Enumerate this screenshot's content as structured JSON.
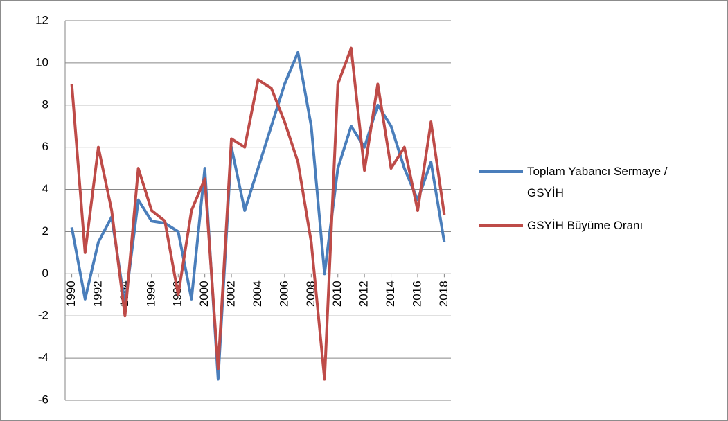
{
  "chart_data": {
    "type": "line",
    "x": [
      1990,
      1991,
      1992,
      1993,
      1994,
      1995,
      1996,
      1997,
      1998,
      1999,
      2000,
      2001,
      2002,
      2003,
      2004,
      2005,
      2006,
      2007,
      2008,
      2009,
      2010,
      2011,
      2012,
      2013,
      2014,
      2015,
      2016,
      2017,
      2018
    ],
    "series": [
      {
        "name": "Toplam Yabancı Sermaye / GSYİH",
        "color": "#4a7ebb",
        "values": [
          2.2,
          -1.2,
          1.5,
          2.7,
          -1.5,
          3.5,
          2.5,
          2.4,
          2.0,
          -1.2,
          5.0,
          -5.0,
          6.0,
          3.0,
          5.0,
          7.0,
          9.0,
          10.5,
          7.0,
          0.0,
          5.0,
          7.0,
          6.0,
          8.0,
          7.0,
          5.0,
          3.5,
          5.3,
          1.5
        ]
      },
      {
        "name": "GSYİH Büyüme Oranı",
        "color": "#be4b48",
        "values": [
          9.0,
          1.0,
          6.0,
          3.0,
          -2.0,
          5.0,
          3.0,
          2.5,
          -1.0,
          3.0,
          4.5,
          -4.5,
          6.4,
          6.0,
          9.2,
          8.8,
          7.2,
          5.3,
          1.5,
          -5.0,
          9.0,
          10.7,
          4.9,
          9.0,
          5.0,
          6.0,
          3.0,
          7.2,
          2.8
        ]
      }
    ],
    "xlim": [
      1989.5,
      2018.5
    ],
    "xticks": [
      1990,
      1992,
      1994,
      1996,
      1998,
      2000,
      2002,
      2004,
      2006,
      2008,
      2010,
      2012,
      2014,
      2016,
      2018
    ],
    "ylim": [
      -6,
      12
    ],
    "yticks": [
      -6,
      -4,
      -2,
      0,
      2,
      4,
      6,
      8,
      10,
      12
    ],
    "grid": true
  }
}
